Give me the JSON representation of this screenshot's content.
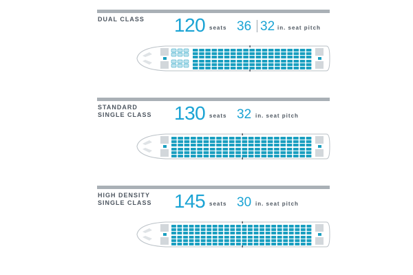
{
  "colors": {
    "accent": "#1aa3d4",
    "label_gray": "#4d5660",
    "rule_gray": "#a9b0b6",
    "seat_teal": "#1a9fc0",
    "seat_light": "#bfe3ee"
  },
  "configs": [
    {
      "name": "DUAL CLASS",
      "seats": "120",
      "seats_unit": "seats",
      "pitch_a": "36",
      "pitch_b": "32",
      "pitch_unit": "in. seat pitch",
      "cabin": {
        "front_rows": 3,
        "front_cols": 4,
        "main_rows": 19,
        "main_cols": 6
      }
    },
    {
      "name": "STANDARD\nSINGLE CLASS",
      "seats": "130",
      "seats_unit": "seats",
      "pitch_a": "32",
      "pitch_unit": "in. seat pitch",
      "cabin": {
        "front_rows": 0,
        "front_cols": 0,
        "main_rows": 22,
        "main_cols": 6
      }
    },
    {
      "name": "HIGH DENSITY\nSINGLE CLASS",
      "seats": "145",
      "seats_unit": "seats",
      "pitch_a": "30",
      "pitch_unit": "in. seat pitch",
      "cabin": {
        "front_rows": 0,
        "front_cols": 0,
        "main_rows": 24,
        "main_cols": 6
      }
    }
  ]
}
